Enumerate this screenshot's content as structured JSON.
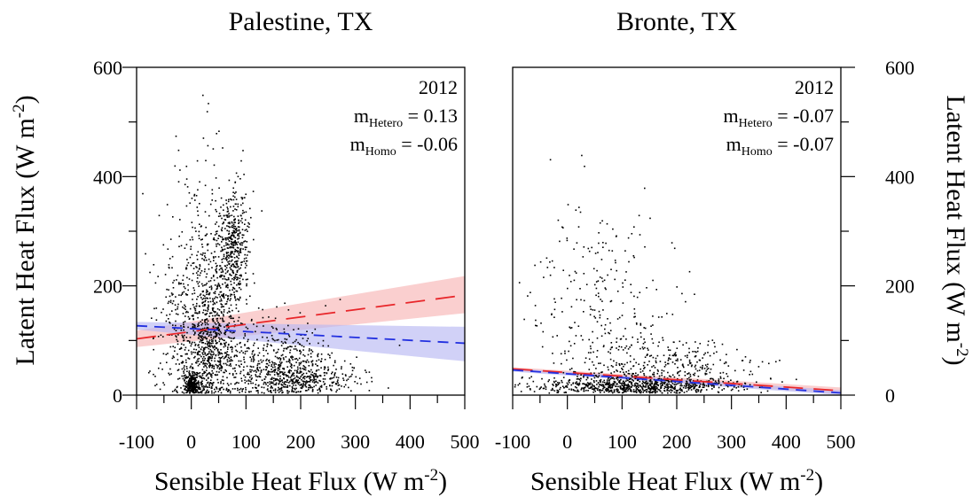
{
  "figure": {
    "y_axis_label_left": "Latent Heat Flux (W m",
    "y_axis_label_right": "Latent Heat Flux (W m",
    "units_exponent": "-2",
    "close_paren": ")"
  },
  "chart_data": [
    {
      "type": "scatter",
      "title": "Palestine, TX",
      "xlabel": "Sensible Heat Flux (W m",
      "xlabel_exponent": "-2",
      "xlabel_close": ")",
      "xlim": [
        -100,
        500
      ],
      "ylim": [
        0,
        600
      ],
      "x_ticks": [
        -100,
        0,
        100,
        200,
        300,
        400,
        500
      ],
      "y_ticks": [
        0,
        200,
        400,
        600
      ],
      "y_tick_side": "left",
      "annotation": {
        "year": "2012",
        "hetero_prefix": "m",
        "hetero_sub": "Hetero",
        "hetero_value": " = 0.13",
        "homo_prefix": "m",
        "homo_sub": "Homo",
        "homo_value": " = -0.06"
      },
      "fits": [
        {
          "color": "#e8262a",
          "band_color": "#f7b6b6",
          "dash": "long-dash",
          "x": [
            -100,
            500
          ],
          "y": [
            103,
            183
          ],
          "band_low": [
            88,
            150
          ],
          "band_high": [
            118,
            218
          ]
        },
        {
          "color": "#2230e0",
          "band_color": "#b9b9f2",
          "dash": "dash",
          "x": [
            -100,
            500
          ],
          "y": [
            127,
            95
          ],
          "band_low": [
            120,
            62
          ],
          "band_high": [
            134,
            125
          ]
        }
      ],
      "clusters": [
        {
          "cx": 0,
          "cy": 20,
          "sx": 6,
          "sy": 12,
          "n": 250
        },
        {
          "cx": 30,
          "cy": 90,
          "sx": 25,
          "sy": 60,
          "n": 600
        },
        {
          "cx": 75,
          "cy": 270,
          "sx": 15,
          "sy": 55,
          "n": 450
        },
        {
          "cx": 20,
          "cy": 200,
          "sx": 30,
          "sy": 100,
          "n": 400
        },
        {
          "cx": 150,
          "cy": 60,
          "sx": 60,
          "sy": 40,
          "n": 500
        },
        {
          "cx": 200,
          "cy": 30,
          "sx": 50,
          "sy": 15,
          "n": 350
        },
        {
          "cx": -30,
          "cy": 110,
          "sx": 25,
          "sy": 70,
          "n": 120
        }
      ],
      "extra_points": [
        [
          -90,
          370
        ],
        [
          -70,
          240
        ],
        [
          -85,
          260
        ],
        [
          20,
          550
        ],
        [
          30,
          535
        ],
        [
          28,
          520
        ],
        [
          10,
          430
        ],
        [
          -10,
          420
        ],
        [
          45,
          480
        ],
        [
          90,
          430
        ],
        [
          -45,
          350
        ],
        [
          -60,
          330
        ]
      ]
    },
    {
      "type": "scatter",
      "title": "Bronte, TX",
      "xlabel": "Sensible Heat Flux (W m",
      "xlabel_exponent": "-2",
      "xlabel_close": ")",
      "xlim": [
        -100,
        500
      ],
      "ylim": [
        0,
        600
      ],
      "x_ticks": [
        -100,
        0,
        100,
        200,
        300,
        400,
        500
      ],
      "y_ticks": [
        0,
        200,
        400,
        600
      ],
      "y_tick_side": "right",
      "annotation": {
        "year": "2012",
        "hetero_prefix": "m",
        "hetero_sub": "Hetero",
        "hetero_value": " = -0.07",
        "homo_prefix": "m",
        "homo_sub": "Homo",
        "homo_value": " = -0.07"
      },
      "fits": [
        {
          "color": "#e8262a",
          "band_color": "#f7b6b6",
          "dash": "long-dash",
          "x": [
            -100,
            500
          ],
          "y": [
            48,
            8
          ],
          "band_low": [
            45,
            2
          ],
          "band_high": [
            51,
            14
          ]
        },
        {
          "color": "#2230e0",
          "band_color": "#b9b9f2",
          "dash": "dash",
          "x": [
            -100,
            500
          ],
          "y": [
            46,
            4
          ],
          "band_low": [
            43,
            0
          ],
          "band_high": [
            49,
            9
          ]
        }
      ],
      "clusters": [
        {
          "cx": 120,
          "cy": 18,
          "sx": 90,
          "sy": 10,
          "n": 700
        },
        {
          "cx": 200,
          "cy": 50,
          "sx": 70,
          "sy": 25,
          "n": 300
        },
        {
          "cx": 70,
          "cy": 120,
          "sx": 60,
          "sy": 80,
          "n": 250
        },
        {
          "cx": 30,
          "cy": 250,
          "sx": 50,
          "sy": 60,
          "n": 60
        }
      ],
      "extra_points": [
        [
          25,
          440
        ],
        [
          30,
          420
        ],
        [
          140,
          380
        ],
        [
          0,
          350
        ],
        [
          20,
          345
        ],
        [
          130,
          330
        ],
        [
          150,
          325
        ],
        [
          190,
          280
        ],
        [
          195,
          270
        ],
        [
          -50,
          245
        ],
        [
          -80,
          140
        ]
      ]
    }
  ]
}
